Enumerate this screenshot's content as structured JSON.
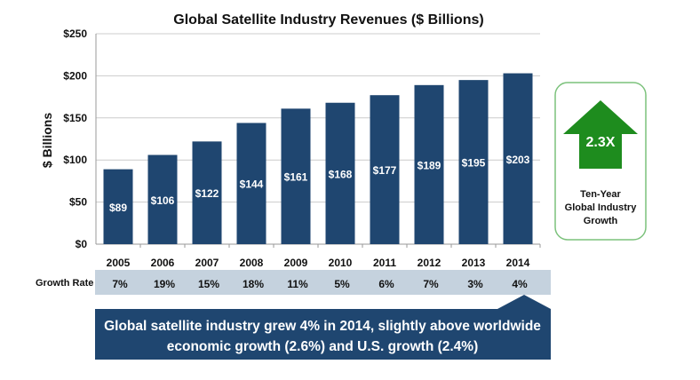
{
  "chart_data": {
    "type": "bar",
    "title": "Global Satellite Industry Revenues ($ Billions)",
    "xlabel": "",
    "ylabel": "$ Billions",
    "ylim": [
      0,
      250
    ],
    "yticks": [
      "$0",
      "$50",
      "$100",
      "$150",
      "$200",
      "$250"
    ],
    "ytick_values": [
      0,
      50,
      100,
      150,
      200,
      250
    ],
    "grid": true,
    "categories": [
      "2005",
      "2006",
      "2007",
      "2008",
      "2009",
      "2010",
      "2011",
      "2012",
      "2013",
      "2014"
    ],
    "values": [
      89,
      106,
      122,
      144,
      161,
      168,
      177,
      189,
      195,
      203
    ],
    "data_labels": [
      "$89",
      "$106",
      "$122",
      "$144",
      "$161",
      "$168",
      "$177",
      "$189",
      "$195",
      "$203"
    ],
    "bar_color": "#1f4670",
    "growth_rate_label": "Growth Rate",
    "growth_rates": [
      "7%",
      "19%",
      "15%",
      "18%",
      "11%",
      "5%",
      "6%",
      "7%",
      "3%",
      "4%"
    ],
    "growth_band_color": "#c5d2de"
  },
  "callout": {
    "text_line1": "Global satellite industry grew 4% in 2014, slightly above worldwide",
    "text_line2": "economic growth (2.6%) and U.S. growth (2.4%)",
    "color": "#1f4670"
  },
  "growth_box": {
    "multiplier": "2.3X",
    "caption_line1": "Ten-Year",
    "caption_line2": "Global Industry",
    "caption_line3": "Growth",
    "arrow_color": "#1e8c1e",
    "border_color": "#7cc27c"
  }
}
